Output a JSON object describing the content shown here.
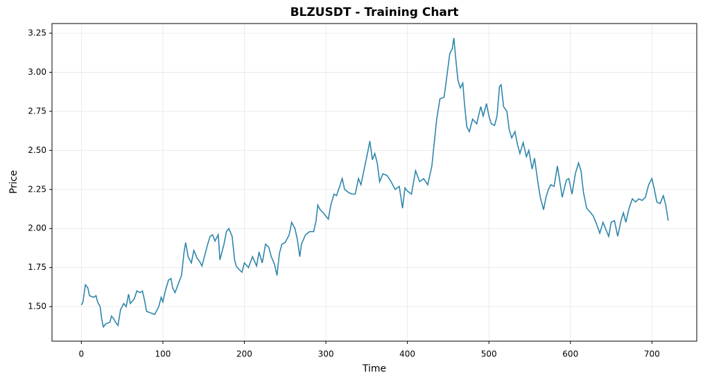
{
  "chart_data": {
    "type": "line",
    "title": "BLZUSDT - Training Chart",
    "x_label": "Time",
    "y_label": "Price",
    "x": [
      0,
      2,
      3,
      5,
      8,
      10,
      15,
      18,
      20,
      23,
      25,
      27,
      30,
      35,
      37,
      40,
      42,
      45,
      48,
      52,
      55,
      58,
      60,
      65,
      68,
      72,
      75,
      78,
      80,
      85,
      90,
      95,
      98,
      100,
      103,
      107,
      110,
      112,
      115,
      120,
      123,
      126,
      128,
      131,
      135,
      138,
      142,
      145,
      148,
      152,
      155,
      158,
      161,
      164,
      168,
      170,
      175,
      178,
      181,
      185,
      188,
      190,
      193,
      197,
      200,
      205,
      210,
      215,
      218,
      222,
      226,
      230,
      233,
      237,
      240,
      243,
      246,
      250,
      255,
      258,
      262,
      265,
      268,
      270,
      275,
      280,
      285,
      288,
      290,
      293,
      297,
      300,
      303,
      306,
      310,
      313,
      317,
      320,
      323,
      328,
      332,
      336,
      340,
      343,
      347,
      351,
      354,
      357,
      360,
      363,
      366,
      370,
      375,
      380,
      385,
      390,
      394,
      397,
      400,
      405,
      410,
      415,
      420,
      425,
      430,
      433,
      436,
      440,
      445,
      448,
      452,
      455,
      457,
      460,
      462,
      465,
      468,
      470,
      473,
      476,
      480,
      485,
      490,
      493,
      497,
      500,
      503,
      507,
      510,
      513,
      515,
      518,
      522,
      525,
      528,
      532,
      535,
      538,
      542,
      546,
      549,
      553,
      556,
      560,
      563,
      567,
      570,
      573,
      576,
      580,
      584,
      587,
      590,
      595,
      598,
      602,
      606,
      610,
      613,
      616,
      620,
      625,
      628,
      632,
      636,
      640,
      643,
      647,
      650,
      654,
      658,
      662,
      665,
      668,
      672,
      676,
      680,
      684,
      688,
      692,
      696,
      700,
      703,
      706,
      710,
      714,
      717,
      720
    ],
    "series": [
      {
        "name": "Price",
        "color": "#2e86ab",
        "values": [
          1.51,
          1.53,
          1.57,
          1.64,
          1.62,
          1.57,
          1.56,
          1.57,
          1.53,
          1.5,
          1.42,
          1.37,
          1.39,
          1.4,
          1.44,
          1.42,
          1.4,
          1.38,
          1.48,
          1.52,
          1.5,
          1.58,
          1.52,
          1.55,
          1.6,
          1.59,
          1.6,
          1.53,
          1.47,
          1.46,
          1.45,
          1.5,
          1.56,
          1.53,
          1.6,
          1.67,
          1.68,
          1.62,
          1.59,
          1.66,
          1.7,
          1.85,
          1.91,
          1.82,
          1.78,
          1.86,
          1.81,
          1.79,
          1.76,
          1.84,
          1.9,
          1.95,
          1.96,
          1.92,
          1.96,
          1.8,
          1.9,
          1.98,
          2.0,
          1.95,
          1.8,
          1.76,
          1.74,
          1.72,
          1.78,
          1.75,
          1.82,
          1.76,
          1.85,
          1.78,
          1.9,
          1.88,
          1.82,
          1.77,
          1.7,
          1.84,
          1.9,
          1.91,
          1.96,
          2.04,
          2.0,
          1.93,
          1.82,
          1.9,
          1.96,
          1.98,
          1.98,
          2.05,
          2.15,
          2.12,
          2.1,
          2.08,
          2.06,
          2.15,
          2.22,
          2.21,
          2.27,
          2.32,
          2.25,
          2.23,
          2.22,
          2.22,
          2.32,
          2.28,
          2.38,
          2.48,
          2.56,
          2.44,
          2.48,
          2.42,
          2.3,
          2.35,
          2.34,
          2.3,
          2.25,
          2.27,
          2.13,
          2.26,
          2.24,
          2.22,
          2.37,
          2.3,
          2.32,
          2.28,
          2.4,
          2.55,
          2.7,
          2.83,
          2.84,
          2.96,
          3.12,
          3.15,
          3.22,
          3.05,
          2.95,
          2.9,
          2.93,
          2.8,
          2.65,
          2.62,
          2.7,
          2.67,
          2.78,
          2.72,
          2.8,
          2.72,
          2.67,
          2.66,
          2.72,
          2.91,
          2.92,
          2.78,
          2.75,
          2.63,
          2.58,
          2.62,
          2.54,
          2.48,
          2.55,
          2.46,
          2.5,
          2.38,
          2.45,
          2.3,
          2.2,
          2.12,
          2.2,
          2.25,
          2.28,
          2.27,
          2.4,
          2.3,
          2.2,
          2.31,
          2.32,
          2.22,
          2.35,
          2.42,
          2.37,
          2.23,
          2.13,
          2.1,
          2.08,
          2.03,
          1.97,
          2.04,
          2.0,
          1.95,
          2.04,
          2.05,
          1.95,
          2.05,
          2.1,
          2.04,
          2.13,
          2.19,
          2.17,
          2.19,
          2.18,
          2.2,
          2.28,
          2.32,
          2.25,
          2.17,
          2.16,
          2.21,
          2.15,
          2.05
        ]
      }
    ],
    "xlim": [
      -36,
      755
    ],
    "ylim": [
      1.279,
      3.312
    ],
    "xticks": [
      0,
      100,
      200,
      300,
      400,
      500,
      600,
      700
    ],
    "yticks": [
      {
        "value": 1.5,
        "label": "1.50"
      },
      {
        "value": 1.75,
        "label": "1.75"
      },
      {
        "value": 2.0,
        "label": "2.00"
      },
      {
        "value": 2.25,
        "label": "2.25"
      },
      {
        "value": 2.5,
        "label": "2.50"
      },
      {
        "value": 2.75,
        "label": "2.75"
      },
      {
        "value": 3.0,
        "label": "3.00"
      },
      {
        "value": 3.25,
        "label": "3.25"
      }
    ],
    "grid": true
  }
}
